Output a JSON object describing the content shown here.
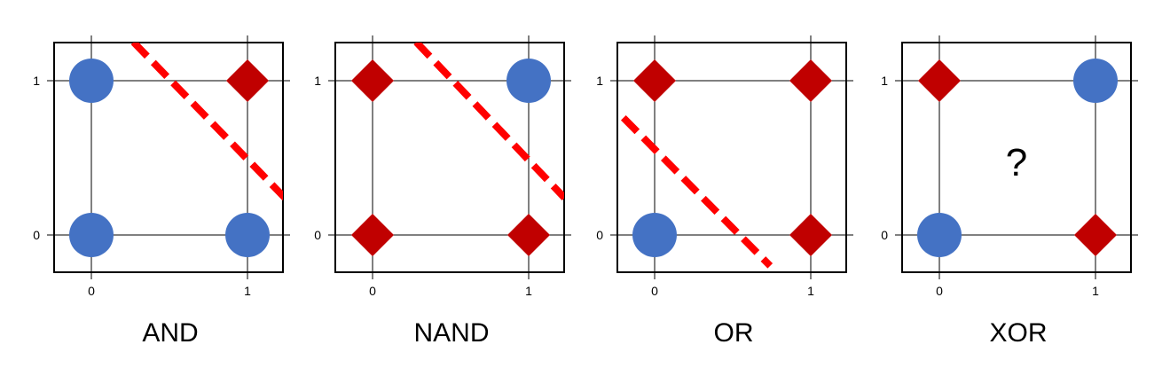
{
  "colors": {
    "class_a": "#4472C4",
    "class_b": "#C00000",
    "boundary": "#FF0000",
    "axis": "#000000"
  },
  "shape_legend": {
    "class_a_shape": "circle",
    "class_b_shape": "diamond"
  },
  "panels": [
    {
      "title": "AND",
      "x_ticks": [
        "0",
        "1"
      ],
      "y_ticks": [
        "0",
        "1"
      ],
      "points": [
        {
          "x": 0,
          "y": 1,
          "cls": "class_a"
        },
        {
          "x": 1,
          "y": 1,
          "cls": "class_b"
        },
        {
          "x": 0,
          "y": 0,
          "cls": "class_a"
        },
        {
          "x": 1,
          "y": 0,
          "cls": "class_a"
        }
      ],
      "boundary": [
        [
          0.27,
          1.25
        ],
        [
          1.24,
          0.24
        ]
      ],
      "annotation": ""
    },
    {
      "title": "NAND",
      "x_ticks": [
        "0",
        "1"
      ],
      "y_ticks": [
        "0",
        "1"
      ],
      "points": [
        {
          "x": 0,
          "y": 1,
          "cls": "class_b"
        },
        {
          "x": 1,
          "y": 1,
          "cls": "class_a"
        },
        {
          "x": 0,
          "y": 0,
          "cls": "class_b"
        },
        {
          "x": 1,
          "y": 0,
          "cls": "class_b"
        }
      ],
      "boundary": [
        [
          0.28,
          1.25
        ],
        [
          1.23,
          0.24
        ]
      ],
      "annotation": ""
    },
    {
      "title": "OR",
      "x_ticks": [
        "0",
        "1"
      ],
      "y_ticks": [
        "0",
        "1"
      ],
      "points": [
        {
          "x": 0,
          "y": 1,
          "cls": "class_b"
        },
        {
          "x": 1,
          "y": 1,
          "cls": "class_b"
        },
        {
          "x": 0,
          "y": 0,
          "cls": "class_a"
        },
        {
          "x": 1,
          "y": 0,
          "cls": "class_b"
        }
      ],
      "boundary": [
        [
          -0.2,
          0.76
        ],
        [
          0.74,
          -0.2
        ]
      ],
      "annotation": ""
    },
    {
      "title": "XOR",
      "x_ticks": [
        "0",
        "1"
      ],
      "y_ticks": [
        "0",
        "1"
      ],
      "points": [
        {
          "x": 0,
          "y": 1,
          "cls": "class_b"
        },
        {
          "x": 1,
          "y": 1,
          "cls": "class_a"
        },
        {
          "x": 0,
          "y": 0,
          "cls": "class_a"
        },
        {
          "x": 1,
          "y": 0,
          "cls": "class_b"
        }
      ],
      "boundary": null,
      "annotation": "?"
    }
  ]
}
